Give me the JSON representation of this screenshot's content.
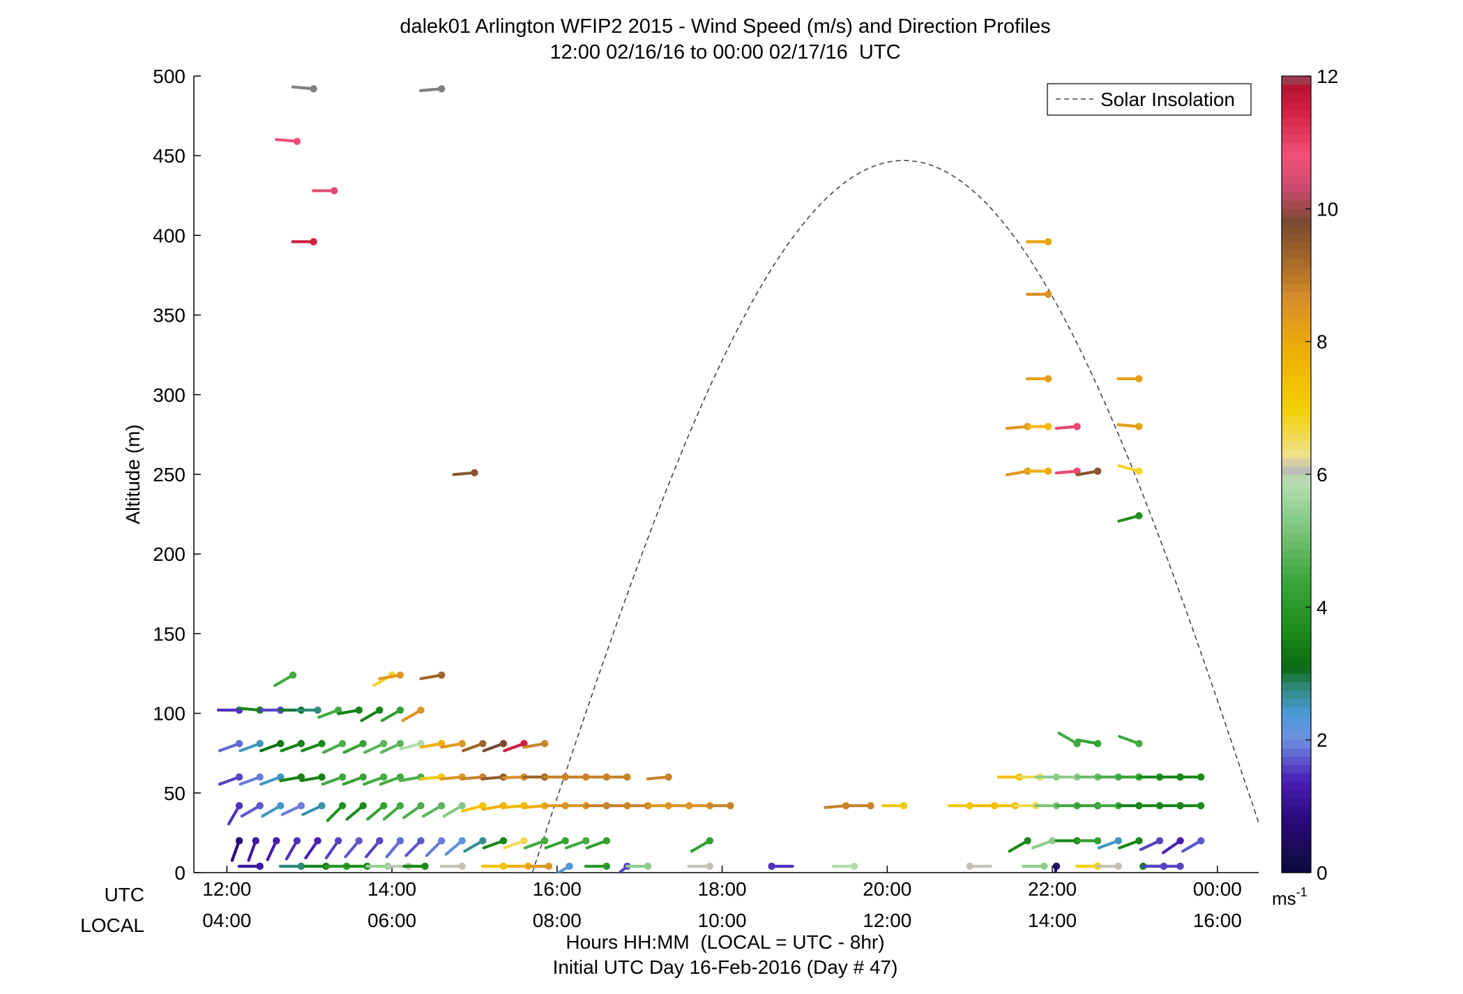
{
  "chart_data": {
    "type": "scatter",
    "title": "dalek01 Arlington WFIP2 2015 - Wind Speed (m/s) and Direction Profiles",
    "subtitle": "12:00 02/16/16 to 00:00 02/17/16  UTC",
    "ylabel": "Altitude (m)",
    "xlabel": "Hours HH:MM  (LOCAL = UTC - 8hr)",
    "xlabel2": "Initial UTC Day 16-Feb-2016 (Day # 47)",
    "utc_row_label": "UTC",
    "local_row_label": "LOCAL",
    "xlim": [
      11.6,
      24.5
    ],
    "ylim": [
      0,
      500
    ],
    "yticks": [
      0,
      50,
      100,
      150,
      200,
      250,
      300,
      350,
      400,
      450,
      500
    ],
    "xticks_utc": [
      {
        "h": 12,
        "label": "12:00"
      },
      {
        "h": 14,
        "label": "14:00"
      },
      {
        "h": 16,
        "label": "16:00"
      },
      {
        "h": 18,
        "label": "18:00"
      },
      {
        "h": 20,
        "label": "20:00"
      },
      {
        "h": 22,
        "label": "22:00"
      },
      {
        "h": 24,
        "label": "00:00"
      }
    ],
    "xticks_local": [
      "04:00",
      "06:00",
      "08:00",
      "10:00",
      "12:00",
      "14:00",
      "16:00"
    ],
    "legend": {
      "label": "Solar Insolation",
      "position": "top-right"
    },
    "colorbar": {
      "min": 0,
      "max": 12,
      "unit_label": "ms",
      "ticks": [
        {
          "v": 0,
          "label": "0"
        },
        {
          "v": 2,
          "label": "2"
        },
        {
          "v": 4,
          "label": "4"
        },
        {
          "v": 6,
          "label": "6"
        },
        {
          "v": 8,
          "label": "8"
        },
        {
          "v": 10,
          "label": "10"
        },
        {
          "v": 12,
          "label": "12"
        }
      ]
    },
    "solar_insolation_curve": {
      "peak_time_utc": 20.2,
      "peak_altitude_scale": 447,
      "sunrise_utc": 15.5,
      "sunset_utc": 24.5
    },
    "wind_barbs": [
      {
        "t": 12.15,
        "z": 102,
        "speed": 1.5,
        "dir": 270
      },
      {
        "t": 12.4,
        "z": 102,
        "speed": 3.5,
        "dir": 275
      },
      {
        "t": 12.65,
        "z": 102,
        "speed": 1.6,
        "dir": 270
      },
      {
        "t": 12.9,
        "z": 102,
        "speed": 3.0,
        "dir": 270
      },
      {
        "t": 13.1,
        "z": 102,
        "speed": 2.8,
        "dir": 270
      },
      {
        "t": 13.35,
        "z": 102,
        "speed": 4.5,
        "dir": 250
      },
      {
        "t": 13.6,
        "z": 102,
        "speed": 3.5,
        "dir": 260
      },
      {
        "t": 13.85,
        "z": 102,
        "speed": 3.5,
        "dir": 240
      },
      {
        "t": 14.1,
        "z": 102,
        "speed": 4.2,
        "dir": 240
      },
      {
        "t": 14.35,
        "z": 102,
        "speed": 8.5,
        "dir": 240
      },
      {
        "t": 12.15,
        "z": 81,
        "speed": 1.8,
        "dir": 250
      },
      {
        "t": 12.4,
        "z": 81,
        "speed": 2.5,
        "dir": 250
      },
      {
        "t": 12.65,
        "z": 81,
        "speed": 3.3,
        "dir": 250
      },
      {
        "t": 12.9,
        "z": 81,
        "speed": 3.5,
        "dir": 250
      },
      {
        "t": 13.15,
        "z": 81,
        "speed": 3.6,
        "dir": 250
      },
      {
        "t": 13.4,
        "z": 81,
        "speed": 4.6,
        "dir": 245
      },
      {
        "t": 13.65,
        "z": 81,
        "speed": 4.3,
        "dir": 245
      },
      {
        "t": 13.9,
        "z": 81,
        "speed": 4.8,
        "dir": 245
      },
      {
        "t": 14.1,
        "z": 81,
        "speed": 4.8,
        "dir": 245
      },
      {
        "t": 14.35,
        "z": 81,
        "speed": 5.8,
        "dir": 255
      },
      {
        "t": 14.6,
        "z": 81,
        "speed": 7.8,
        "dir": 260
      },
      {
        "t": 14.85,
        "z": 81,
        "speed": 8.4,
        "dir": 260
      },
      {
        "t": 15.1,
        "z": 81,
        "speed": 9.3,
        "dir": 250
      },
      {
        "t": 15.35,
        "z": 81,
        "speed": 9.8,
        "dir": 250
      },
      {
        "t": 15.6,
        "z": 81,
        "speed": 11.5,
        "dir": 250
      },
      {
        "t": 15.85,
        "z": 81,
        "speed": 8.8,
        "dir": 260
      },
      {
        "t": 12.15,
        "z": 60,
        "speed": 1.6,
        "dir": 250
      },
      {
        "t": 12.4,
        "z": 60,
        "speed": 1.9,
        "dir": 250
      },
      {
        "t": 12.65,
        "z": 60,
        "speed": 2.5,
        "dir": 250
      },
      {
        "t": 12.9,
        "z": 60,
        "speed": 3.5,
        "dir": 260
      },
      {
        "t": 13.15,
        "z": 60,
        "speed": 3.5,
        "dir": 260
      },
      {
        "t": 13.4,
        "z": 60,
        "speed": 4.5,
        "dir": 250
      },
      {
        "t": 13.65,
        "z": 60,
        "speed": 4.3,
        "dir": 250
      },
      {
        "t": 13.9,
        "z": 60,
        "speed": 4.5,
        "dir": 250
      },
      {
        "t": 14.1,
        "z": 60,
        "speed": 4.5,
        "dir": 250
      },
      {
        "t": 14.35,
        "z": 60,
        "speed": 4.6,
        "dir": 260
      },
      {
        "t": 14.6,
        "z": 60,
        "speed": 7.2,
        "dir": 265
      },
      {
        "t": 14.85,
        "z": 60,
        "speed": 8.5,
        "dir": 265
      },
      {
        "t": 15.1,
        "z": 60,
        "speed": 8.8,
        "dir": 265
      },
      {
        "t": 15.35,
        "z": 60,
        "speed": 9.5,
        "dir": 265
      },
      {
        "t": 15.6,
        "z": 60,
        "speed": 8.6,
        "dir": 268
      },
      {
        "t": 15.85,
        "z": 60,
        "speed": 9.3,
        "dir": 270
      },
      {
        "t": 16.1,
        "z": 60,
        "speed": 8.8,
        "dir": 270
      },
      {
        "t": 16.35,
        "z": 60,
        "speed": 8.8,
        "dir": 270
      },
      {
        "t": 16.6,
        "z": 60,
        "speed": 8.8,
        "dir": 270
      },
      {
        "t": 16.85,
        "z": 60,
        "speed": 8.8,
        "dir": 270
      },
      {
        "t": 17.35,
        "z": 60,
        "speed": 8.8,
        "dir": 265
      },
      {
        "t": 12.15,
        "z": 42,
        "speed": 1.5,
        "dir": 210
      },
      {
        "t": 12.4,
        "z": 42,
        "speed": 1.7,
        "dir": 240
      },
      {
        "t": 12.65,
        "z": 42,
        "speed": 2.5,
        "dir": 240
      },
      {
        "t": 12.9,
        "z": 42,
        "speed": 1.9,
        "dir": 245
      },
      {
        "t": 13.15,
        "z": 42,
        "speed": 2.6,
        "dir": 245
      },
      {
        "t": 13.4,
        "z": 42,
        "speed": 3.8,
        "dir": 225
      },
      {
        "t": 13.65,
        "z": 42,
        "speed": 3.6,
        "dir": 230
      },
      {
        "t": 13.9,
        "z": 42,
        "speed": 4.3,
        "dir": 230
      },
      {
        "t": 14.1,
        "z": 42,
        "speed": 4.5,
        "dir": 230
      },
      {
        "t": 14.35,
        "z": 42,
        "speed": 4.6,
        "dir": 235
      },
      {
        "t": 14.6,
        "z": 42,
        "speed": 4.8,
        "dir": 240
      },
      {
        "t": 14.85,
        "z": 42,
        "speed": 5.3,
        "dir": 240
      },
      {
        "t": 15.1,
        "z": 42,
        "speed": 7.3,
        "dir": 255
      },
      {
        "t": 15.35,
        "z": 42,
        "speed": 7.8,
        "dir": 260
      },
      {
        "t": 15.6,
        "z": 42,
        "speed": 7.6,
        "dir": 265
      },
      {
        "t": 15.85,
        "z": 42,
        "speed": 7.9,
        "dir": 265
      },
      {
        "t": 16.1,
        "z": 42,
        "speed": 8.4,
        "dir": 270
      },
      {
        "t": 16.35,
        "z": 42,
        "speed": 8.5,
        "dir": 270
      },
      {
        "t": 16.6,
        "z": 42,
        "speed": 8.8,
        "dir": 270
      },
      {
        "t": 16.85,
        "z": 42,
        "speed": 8.8,
        "dir": 270
      },
      {
        "t": 17.1,
        "z": 42,
        "speed": 8.8,
        "dir": 270
      },
      {
        "t": 17.35,
        "z": 42,
        "speed": 8.4,
        "dir": 270
      },
      {
        "t": 17.6,
        "z": 42,
        "speed": 8.5,
        "dir": 270
      },
      {
        "t": 17.85,
        "z": 42,
        "speed": 8.5,
        "dir": 270
      },
      {
        "t": 18.1,
        "z": 42,
        "speed": 8.8,
        "dir": 270
      },
      {
        "t": 19.5,
        "z": 42,
        "speed": 8.8,
        "dir": 265
      },
      {
        "t": 19.8,
        "z": 42,
        "speed": 8.8,
        "dir": 270
      },
      {
        "t": 20.2,
        "z": 42,
        "speed": 7.2,
        "dir": 270
      },
      {
        "t": 21.0,
        "z": 42,
        "speed": 7.2,
        "dir": 270
      },
      {
        "t": 21.3,
        "z": 42,
        "speed": 7.5,
        "dir": 270
      },
      {
        "t": 21.55,
        "z": 42,
        "speed": 7.4,
        "dir": 270
      },
      {
        "t": 21.8,
        "z": 42,
        "speed": 6.6,
        "dir": 270
      },
      {
        "t": 22.05,
        "z": 42,
        "speed": 5.2,
        "dir": 270
      },
      {
        "t": 22.3,
        "z": 42,
        "speed": 4.5,
        "dir": 270
      },
      {
        "t": 22.55,
        "z": 42,
        "speed": 4.3,
        "dir": 270
      },
      {
        "t": 22.8,
        "z": 42,
        "speed": 4.5,
        "dir": 270
      },
      {
        "t": 23.05,
        "z": 42,
        "speed": 3.5,
        "dir": 270
      },
      {
        "t": 23.3,
        "z": 42,
        "speed": 3.6,
        "dir": 270
      },
      {
        "t": 23.55,
        "z": 42,
        "speed": 3.5,
        "dir": 270
      },
      {
        "t": 23.8,
        "z": 42,
        "speed": 3.6,
        "dir": 270
      },
      {
        "t": 21.6,
        "z": 60,
        "speed": 7.4,
        "dir": 270
      },
      {
        "t": 21.85,
        "z": 60,
        "speed": 6.6,
        "dir": 270
      },
      {
        "t": 22.05,
        "z": 60,
        "speed": 5.4,
        "dir": 270
      },
      {
        "t": 22.3,
        "z": 60,
        "speed": 5.4,
        "dir": 270
      },
      {
        "t": 22.55,
        "z": 60,
        "speed": 5.0,
        "dir": 270
      },
      {
        "t": 22.8,
        "z": 60,
        "speed": 4.6,
        "dir": 270
      },
      {
        "t": 23.05,
        "z": 60,
        "speed": 4.4,
        "dir": 270
      },
      {
        "t": 23.3,
        "z": 60,
        "speed": 3.6,
        "dir": 270
      },
      {
        "t": 23.55,
        "z": 60,
        "speed": 3.5,
        "dir": 270
      },
      {
        "t": 23.8,
        "z": 60,
        "speed": 3.6,
        "dir": 270
      },
      {
        "t": 22.3,
        "z": 81,
        "speed": 4.5,
        "dir": 300
      },
      {
        "t": 22.55,
        "z": 81,
        "speed": 4.3,
        "dir": 280
      },
      {
        "t": 23.05,
        "z": 81,
        "speed": 4.5,
        "dir": 290
      },
      {
        "t": 12.15,
        "z": 20,
        "speed": 0.8,
        "dir": 200
      },
      {
        "t": 12.35,
        "z": 20,
        "speed": 1.2,
        "dir": 200
      },
      {
        "t": 12.6,
        "z": 20,
        "speed": 1.3,
        "dir": 205
      },
      {
        "t": 12.85,
        "z": 20,
        "speed": 1.5,
        "dir": 210
      },
      {
        "t": 13.1,
        "z": 20,
        "speed": 1.4,
        "dir": 215
      },
      {
        "t": 13.35,
        "z": 20,
        "speed": 1.6,
        "dir": 215
      },
      {
        "t": 13.6,
        "z": 20,
        "speed": 1.7,
        "dir": 220
      },
      {
        "t": 13.85,
        "z": 20,
        "speed": 1.6,
        "dir": 220
      },
      {
        "t": 14.1,
        "z": 20,
        "speed": 1.8,
        "dir": 220
      },
      {
        "t": 14.35,
        "z": 20,
        "speed": 1.7,
        "dir": 225
      },
      {
        "t": 14.6,
        "z": 20,
        "speed": 1.9,
        "dir": 225
      },
      {
        "t": 14.85,
        "z": 20,
        "speed": 2.2,
        "dir": 230
      },
      {
        "t": 15.1,
        "z": 20,
        "speed": 2.7,
        "dir": 240
      },
      {
        "t": 15.35,
        "z": 20,
        "speed": 3.5,
        "dir": 250
      },
      {
        "t": 15.6,
        "z": 20,
        "speed": 6.6,
        "dir": 250
      },
      {
        "t": 15.85,
        "z": 20,
        "speed": 4.5,
        "dir": 250
      },
      {
        "t": 16.1,
        "z": 20,
        "speed": 4.3,
        "dir": 250
      },
      {
        "t": 16.35,
        "z": 20,
        "speed": 4.5,
        "dir": 250
      },
      {
        "t": 16.6,
        "z": 20,
        "speed": 4.2,
        "dir": 250
      },
      {
        "t": 17.85,
        "z": 20,
        "speed": 4.2,
        "dir": 240
      },
      {
        "t": 21.7,
        "z": 20,
        "speed": 3.6,
        "dir": 240
      },
      {
        "t": 22.0,
        "z": 20,
        "speed": 5.4,
        "dir": 250
      },
      {
        "t": 22.3,
        "z": 20,
        "speed": 3.5,
        "dir": 270
      },
      {
        "t": 22.55,
        "z": 20,
        "speed": 4.2,
        "dir": 270
      },
      {
        "t": 22.8,
        "z": 20,
        "speed": 2.5,
        "dir": 250
      },
      {
        "t": 23.05,
        "z": 20,
        "speed": 3.5,
        "dir": 250
      },
      {
        "t": 23.3,
        "z": 20,
        "speed": 1.6,
        "dir": 245
      },
      {
        "t": 23.55,
        "z": 20,
        "speed": 1.4,
        "dir": 235
      },
      {
        "t": 23.8,
        "z": 20,
        "speed": 1.7,
        "dir": 240
      },
      {
        "t": 12.4,
        "z": 4,
        "speed": 1.2,
        "dir": 270
      },
      {
        "t": 12.9,
        "z": 4,
        "speed": 2.8,
        "dir": 270
      },
      {
        "t": 13.2,
        "z": 4,
        "speed": 3.5,
        "dir": 270
      },
      {
        "t": 13.45,
        "z": 4,
        "speed": 4.0,
        "dir": 270
      },
      {
        "t": 13.7,
        "z": 4,
        "speed": 3.6,
        "dir": 270
      },
      {
        "t": 13.95,
        "z": 4,
        "speed": 5.5,
        "dir": 270
      },
      {
        "t": 14.2,
        "z": 4,
        "speed": 6.0,
        "dir": 270
      },
      {
        "t": 14.4,
        "z": 4,
        "speed": 3.6,
        "dir": 270
      },
      {
        "t": 14.85,
        "z": 4,
        "speed": 6.1,
        "dir": 270
      },
      {
        "t": 15.35,
        "z": 4,
        "speed": 7.3,
        "dir": 270
      },
      {
        "t": 15.65,
        "z": 4,
        "speed": 7.8,
        "dir": 270
      },
      {
        "t": 15.9,
        "z": 4,
        "speed": 8.4,
        "dir": 270
      },
      {
        "t": 16.15,
        "z": 4,
        "speed": 2.3,
        "dir": 240
      },
      {
        "t": 16.6,
        "z": 4,
        "speed": 4.0,
        "dir": 270
      },
      {
        "t": 16.85,
        "z": 4,
        "speed": 1.6,
        "dir": 230
      },
      {
        "t": 17.1,
        "z": 4,
        "speed": 5.4,
        "dir": 270
      },
      {
        "t": 17.85,
        "z": 4,
        "speed": 6.1,
        "dir": 270
      },
      {
        "t": 18.6,
        "z": 4,
        "speed": 1.5,
        "dir": 90
      },
      {
        "t": 19.6,
        "z": 4,
        "speed": 5.8,
        "dir": 270
      },
      {
        "t": 21.0,
        "z": 4,
        "speed": 6.1,
        "dir": 90
      },
      {
        "t": 21.9,
        "z": 4,
        "speed": 5.4,
        "dir": 270
      },
      {
        "t": 22.05,
        "z": 4,
        "speed": 0.6,
        "dir": 190
      },
      {
        "t": 22.55,
        "z": 4,
        "speed": 7.0,
        "dir": 270
      },
      {
        "t": 22.8,
        "z": 4,
        "speed": 6.1,
        "dir": 270
      },
      {
        "t": 23.1,
        "z": 4,
        "speed": 3.5,
        "dir": 90
      },
      {
        "t": 23.35,
        "z": 4,
        "speed": 1.6,
        "dir": 270
      },
      {
        "t": 23.55,
        "z": 4,
        "speed": 1.6,
        "dir": 270
      },
      {
        "t": 12.8,
        "z": 124,
        "speed": 4.5,
        "dir": 240
      },
      {
        "t": 14.0,
        "z": 124,
        "speed": 6.8,
        "dir": 240
      },
      {
        "t": 14.1,
        "z": 124,
        "speed": 8.4,
        "dir": 260
      },
      {
        "t": 14.6,
        "z": 124,
        "speed": 9.3,
        "dir": 260
      },
      {
        "t": 15.0,
        "z": 251,
        "speed": 9.6,
        "dir": 265
      },
      {
        "t": 13.05,
        "z": 396,
        "speed": 11.5,
        "dir": 270
      },
      {
        "t": 13.3,
        "z": 428,
        "speed": 10.6,
        "dir": 270
      },
      {
        "t": 12.85,
        "z": 459,
        "speed": 10.8,
        "dir": 275
      },
      {
        "t": 13.05,
        "z": 492,
        "speed": 12,
        "dir": 275
      },
      {
        "t": 14.6,
        "z": 492,
        "speed": 12,
        "dir": 265
      },
      {
        "t": 21.95,
        "z": 396,
        "speed": 8.1,
        "dir": 270
      },
      {
        "t": 21.95,
        "z": 363,
        "speed": 8.6,
        "dir": 270
      },
      {
        "t": 21.95,
        "z": 310,
        "speed": 8.2,
        "dir": 270
      },
      {
        "t": 21.7,
        "z": 280,
        "speed": 8.4,
        "dir": 265
      },
      {
        "t": 21.95,
        "z": 280,
        "speed": 7.6,
        "dir": 270
      },
      {
        "t": 21.7,
        "z": 252,
        "speed": 8.4,
        "dir": 260
      },
      {
        "t": 21.95,
        "z": 252,
        "speed": 7.9,
        "dir": 270
      },
      {
        "t": 22.3,
        "z": 280,
        "speed": 10.9,
        "dir": 265
      },
      {
        "t": 22.3,
        "z": 252,
        "speed": 10.9,
        "dir": 265
      },
      {
        "t": 22.55,
        "z": 252,
        "speed": 9.6,
        "dir": 260
      },
      {
        "t": 23.05,
        "z": 310,
        "speed": 8.2,
        "dir": 270
      },
      {
        "t": 23.05,
        "z": 280,
        "speed": 8.2,
        "dir": 275
      },
      {
        "t": 23.05,
        "z": 252,
        "speed": 6.8,
        "dir": 285
      },
      {
        "t": 23.05,
        "z": 224,
        "speed": 3.8,
        "dir": 255
      }
    ]
  }
}
